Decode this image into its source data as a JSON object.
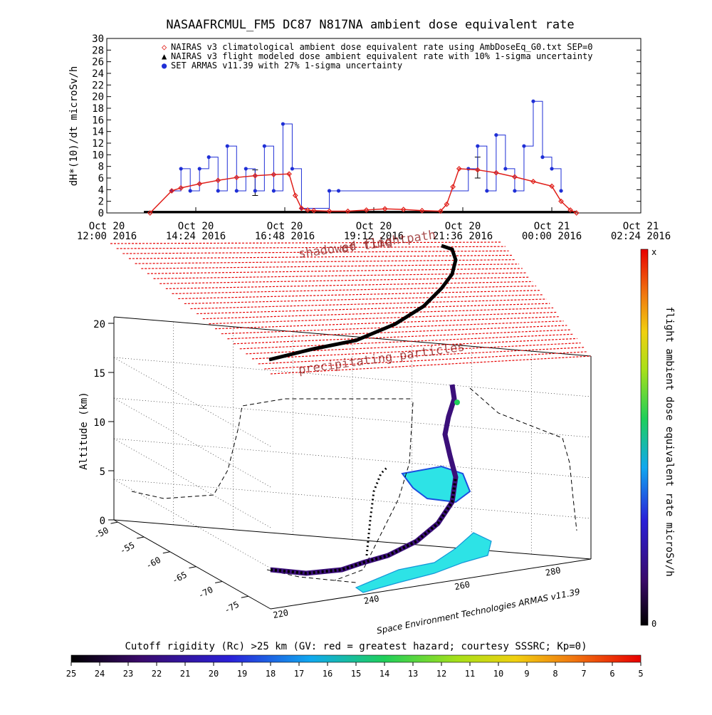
{
  "chart_data": [
    {
      "type": "line",
      "title": "NASAAFRCMUL_FM5 DC87 N817NA ambient dose equivalent rate",
      "ylabel": "dH*(10)/dt microSv/h",
      "ylim": [
        0,
        30
      ],
      "yticks": [
        "0",
        "2",
        "4",
        "6",
        "8",
        "10",
        "12",
        "14",
        "16",
        "18",
        "20",
        "22",
        "24",
        "26",
        "28",
        "30"
      ],
      "xlim": [
        "2016-10-20 12:00",
        "2016-10-21 02:24"
      ],
      "xticks": [
        {
          "line1": "Oct 20",
          "line2": "12:00 2016"
        },
        {
          "line1": "Oct 20",
          "line2": "14:24 2016"
        },
        {
          "line1": "Oct 20",
          "line2": "16:48 2016"
        },
        {
          "line1": "Oct 20",
          "line2": "19:12 2016"
        },
        {
          "line1": "Oct 20",
          "line2": "21:36 2016"
        },
        {
          "line1": "Oct 21",
          "line2": "00:00 2016"
        },
        {
          "line1": "Oct 21",
          "line2": "02:24 2016"
        }
      ],
      "legend": [
        {
          "symbol": "◇",
          "color": "#e0201b",
          "text": "NAIRAS v3 climatological ambient dose equivalent rate using AmbDoseEq_G0.txt SEP=0"
        },
        {
          "symbol": "▲",
          "color": "#000000",
          "text": "NAIRAS v3 flight modeled dose ambient equivalent rate with 10% 1-sigma uncertainty"
        },
        {
          "symbol": "●",
          "color": "#1f2fd6",
          "text": "SET ARMAS v11.39 with 27% 1-sigma uncertainty"
        }
      ],
      "series": [
        {
          "name": "NAIRAS v3 climatological ambient dose equivalent rate using AmbDoseEq_G0.txt SEP=0",
          "color": "#e0201b",
          "x": [
            "2016-10-20 13:10",
            "2016-10-20 13:45",
            "2016-10-20 14:00",
            "2016-10-20 14:30",
            "2016-10-20 15:00",
            "2016-10-20 15:30",
            "2016-10-20 16:00",
            "2016-10-20 16:30",
            "2016-10-20 16:55",
            "2016-10-20 17:05",
            "2016-10-20 17:15",
            "2016-10-20 17:25",
            "2016-10-20 17:35",
            "2016-10-20 18:00",
            "2016-10-20 18:30",
            "2016-10-20 19:00",
            "2016-10-20 19:30",
            "2016-10-20 20:00",
            "2016-10-20 20:30",
            "2016-10-20 21:00",
            "2016-10-20 21:10",
            "2016-10-20 21:20",
            "2016-10-20 21:30",
            "2016-10-20 22:00",
            "2016-10-20 22:30",
            "2016-10-20 23:00",
            "2016-10-20 23:30",
            "2016-10-21 00:00",
            "2016-10-21 00:15",
            "2016-10-21 00:30",
            "2016-10-21 00:40"
          ],
          "y": [
            0,
            3.8,
            4.3,
            5.0,
            5.6,
            6.1,
            6.4,
            6.6,
            6.7,
            3.0,
            0.8,
            0.5,
            0.4,
            0.3,
            0.3,
            0.5,
            0.7,
            0.6,
            0.4,
            0.3,
            1.5,
            4.5,
            7.6,
            7.4,
            6.9,
            6.2,
            5.4,
            4.6,
            2.0,
            0.5,
            0
          ],
          "marker": "diamond"
        },
        {
          "name": "NAIRAS v3 flight modeled dose ambient equivalent rate with 10% 1-sigma uncertainty",
          "color": "#000000",
          "x": [
            "2016-10-20 13:00",
            "2016-10-21 00:40"
          ],
          "y": [
            0.2,
            0.2
          ],
          "error_bars": [
            {
              "x": "2016-10-20 16:00",
              "y": 6.0,
              "low": 3.0,
              "high": 7.4
            },
            {
              "x": "2016-10-20 22:00",
              "y": 7.4,
              "low": 6.0,
              "high": 9.6
            }
          ]
        },
        {
          "name": "SET ARMAS v11.39 with 27% 1-sigma uncertainty",
          "color": "#1f2fd6",
          "x": [
            "2016-10-20 13:45",
            "2016-10-20 14:00",
            "2016-10-20 14:15",
            "2016-10-20 14:30",
            "2016-10-20 14:45",
            "2016-10-20 15:00",
            "2016-10-20 15:15",
            "2016-10-20 15:30",
            "2016-10-20 15:45",
            "2016-10-20 16:00",
            "2016-10-20 16:15",
            "2016-10-20 16:30",
            "2016-10-20 16:45",
            "2016-10-20 17:00",
            "2016-10-20 17:15",
            "2016-10-20 18:00",
            "2016-10-20 18:15",
            "2016-10-20 21:45",
            "2016-10-20 22:00",
            "2016-10-20 22:15",
            "2016-10-20 22:30",
            "2016-10-20 22:45",
            "2016-10-20 23:00",
            "2016-10-20 23:15",
            "2016-10-20 23:30",
            "2016-10-20 23:45",
            "2016-10-21 00:00",
            "2016-10-21 00:15"
          ],
          "y": [
            3.8,
            7.6,
            3.8,
            7.6,
            9.6,
            3.8,
            11.5,
            3.8,
            7.6,
            3.8,
            11.5,
            3.8,
            15.3,
            7.6,
            0.8,
            3.8,
            3.8,
            7.6,
            11.5,
            3.8,
            13.4,
            7.6,
            3.8,
            11.5,
            19.2,
            9.6,
            7.6,
            3.8
          ],
          "marker": "circle"
        }
      ]
    },
    {
      "type": "scatter",
      "title": "",
      "ylabel": "Altitude (km)",
      "zticks": [
        "0",
        "5",
        "10",
        "15",
        "20"
      ],
      "lat_ticks": [
        "-50",
        "-55",
        "-60",
        "-65",
        "-70",
        "-75"
      ],
      "lon_ticks": [
        "220",
        "240",
        "260",
        "280"
      ],
      "annotations": [
        "shadowed flightpath",
        "of time",
        "precipitating particles",
        "Space Environment Technologies ARMAS v11.39"
      ],
      "series": [
        {
          "name": "",
          "lon": [
            214,
            225,
            240,
            252,
            262
          ],
          "lat": [
            -70,
            -66,
            -62,
            -58,
            -54
          ],
          "altitude_km": [
            0,
            4,
            8,
            11,
            13
          ],
          "color": "#1a1a1a"
        }
      ]
    },
    {
      "type": "heatmap",
      "title": "flight ambient dose equivalent rate microSv/h",
      "colorbar_top": "x",
      "colorbar_bottom": "0",
      "orientation": "vertical"
    },
    {
      "type": "heatmap",
      "title": "Cutoff rigidity (Rc) >25 km (GV: red = greatest hazard; courtesy SSSRC; Kp=0)",
      "ticks": [
        "25",
        "24",
        "23",
        "22",
        "21",
        "20",
        "19",
        "18",
        "17",
        "16",
        "15",
        "14",
        "13",
        "12",
        "11",
        "10",
        "9",
        "8",
        "7",
        "6",
        "5"
      ],
      "orientation": "horizontal"
    }
  ]
}
